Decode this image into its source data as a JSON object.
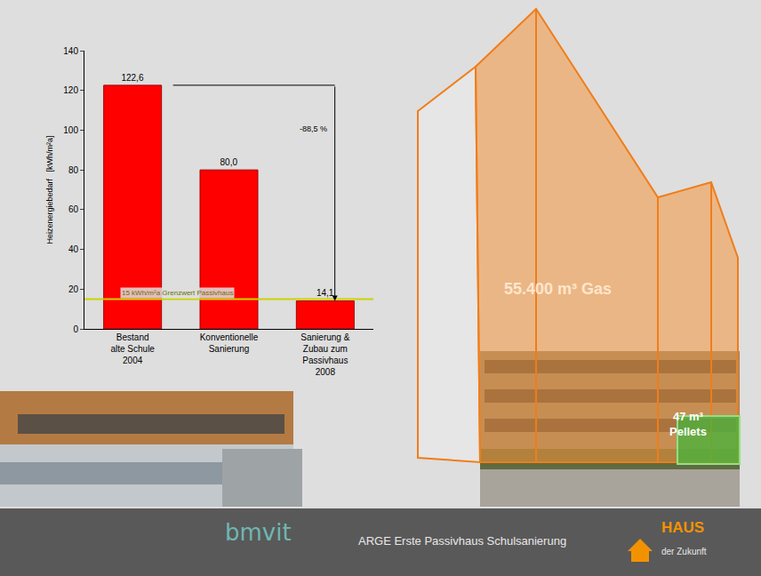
{
  "chart_data": {
    "type": "bar",
    "y_label": "Heizenergiebedarf   [kWh/m²a]",
    "categories": [
      "Bestand alte Schule 2004",
      "Konventionelle Sanierung",
      "Sanierung & Zubau zum Passivhaus 2008"
    ],
    "values": [
      122.6,
      80.0,
      14.1
    ],
    "value_labels": [
      "122,6",
      "80,0",
      "14,1"
    ],
    "data_labels": true,
    "color": "#ff0000",
    "ylim": [
      0,
      140
    ],
    "yticks": [
      0,
      20,
      40,
      60,
      80,
      100,
      120,
      140
    ],
    "grid": false,
    "annotations": [
      {
        "text": "15 kWh/m²a Grenzwert Passivhaus",
        "y": 15,
        "color": "#c8d400"
      },
      {
        "text": "-88,5 %",
        "y_from": 122.6,
        "y_to": 14.1
      }
    ]
  },
  "slide": {
    "gas_label": "55.400 m³ Gas",
    "pellets_label": "47 m³ Pellets",
    "footer": "ARGE Erste Passivhaus Schulsanierung",
    "logo_left": "bmvit",
    "logo_right": [
      "HAUS",
      "der Zukunft"
    ]
  }
}
